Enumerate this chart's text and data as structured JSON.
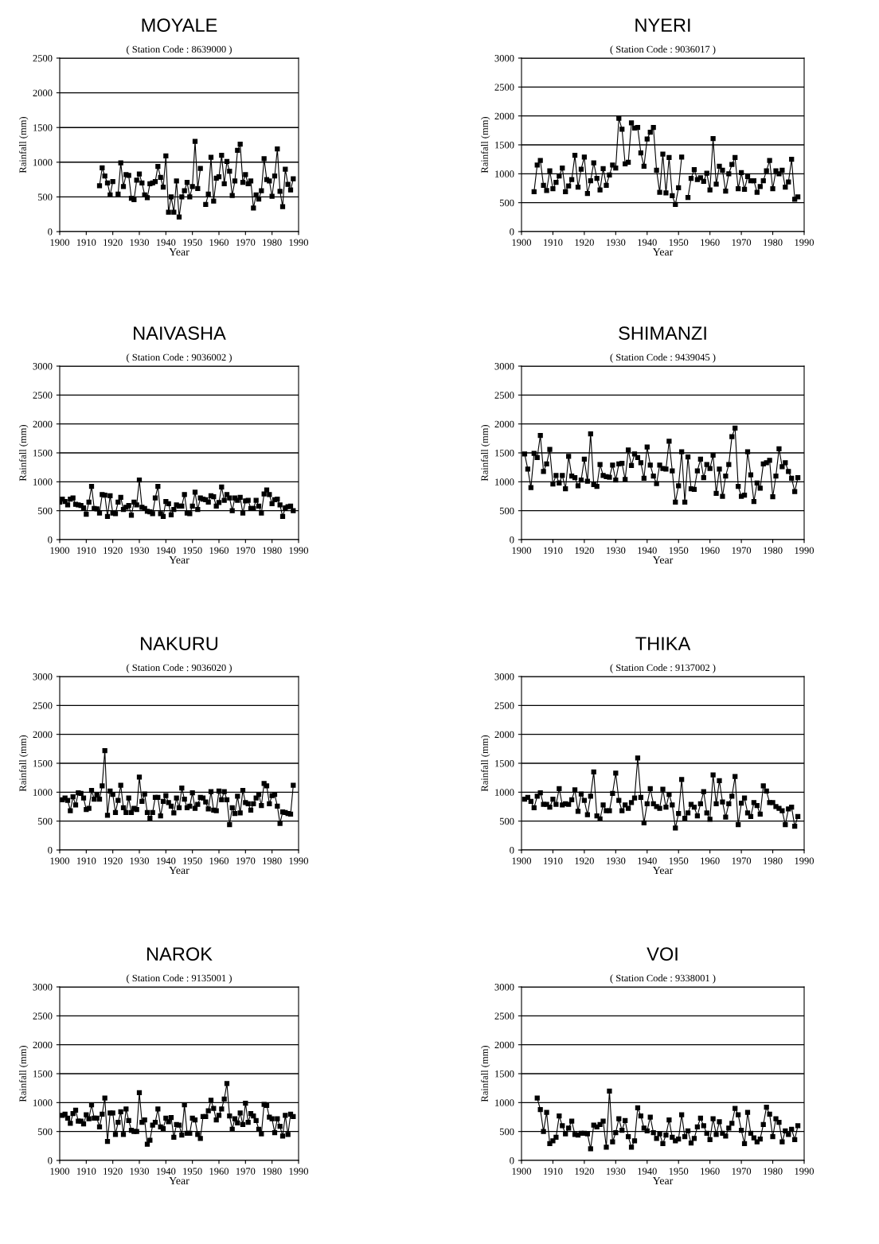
{
  "chart_data": [
    {
      "type": "line",
      "title": "MOYALE",
      "subtitle": "( Station Code : 8639000 )",
      "xlabel": "Year",
      "ylabel": "Rainfall (mm)",
      "color": "#000000",
      "marker": "square",
      "grid": "y",
      "xlim": [
        1900,
        1990
      ],
      "xticks": [
        1900,
        1910,
        1920,
        1930,
        1940,
        1950,
        1960,
        1970,
        1980,
        1990
      ],
      "ylim": [
        0,
        2500
      ],
      "yticks": [
        0,
        500,
        1000,
        1500,
        2000,
        2500
      ],
      "x": [
        1915,
        1916,
        1917,
        1918,
        1919,
        1920,
        1921,
        1922,
        1923,
        1924,
        1925,
        1926,
        1927,
        1928,
        1929,
        1930,
        1931,
        1932,
        1933,
        1934,
        1935,
        1936,
        1937,
        1938,
        1939,
        1940,
        1941,
        1942,
        1943,
        1944,
        1945,
        1946,
        1947,
        1948,
        1949,
        1950,
        1951,
        1952,
        1953,
        1954,
        1955,
        1956,
        1957,
        1958,
        1959,
        1960,
        1961,
        1962,
        1963,
        1964,
        1965,
        1966,
        1967,
        1968,
        1969,
        1970,
        1971,
        1972,
        1973,
        1974,
        1975,
        1976,
        1977,
        1978,
        1979,
        1980,
        1981,
        1982,
        1983,
        1984,
        1985,
        1986,
        1987,
        1988
      ],
      "values": [
        660,
        920,
        800,
        700,
        530,
        720,
        null,
        540,
        990,
        650,
        820,
        810,
        480,
        460,
        740,
        830,
        700,
        530,
        490,
        690,
        700,
        720,
        940,
        780,
        640,
        1090,
        280,
        500,
        280,
        730,
        210,
        500,
        590,
        710,
        500,
        650,
        1300,
        620,
        910,
        null,
        390,
        540,
        1070,
        440,
        770,
        790,
        1100,
        690,
        1010,
        870,
        520,
        730,
        1170,
        1260,
        710,
        820,
        690,
        730,
        340,
        530,
        470,
        590,
        1050,
        750,
        730,
        510,
        800,
        1190,
        580,
        360,
        900,
        680,
        600,
        760
      ]
    },
    {
      "type": "line",
      "title": "NYERI",
      "subtitle": "( Station Code : 9036017 )",
      "xlabel": "Year",
      "ylabel": "Rainfall (mm)",
      "color": "#000000",
      "marker": "square",
      "grid": "y",
      "xlim": [
        1900,
        1990
      ],
      "xticks": [
        1900,
        1910,
        1920,
        1930,
        1940,
        1950,
        1960,
        1970,
        1980,
        1990
      ],
      "ylim": [
        0,
        3000
      ],
      "yticks": [
        0,
        500,
        1000,
        1500,
        2000,
        2500,
        3000
      ],
      "x": [
        1904,
        1905,
        1906,
        1907,
        1908,
        1909,
        1910,
        1911,
        1912,
        1913,
        1914,
        1915,
        1916,
        1917,
        1918,
        1919,
        1920,
        1921,
        1922,
        1923,
        1924,
        1925,
        1926,
        1927,
        1928,
        1929,
        1930,
        1931,
        1932,
        1933,
        1934,
        1935,
        1936,
        1937,
        1938,
        1939,
        1940,
        1941,
        1942,
        1943,
        1944,
        1945,
        1946,
        1947,
        1948,
        1949,
        1950,
        1951,
        1952,
        1953,
        1954,
        1955,
        1956,
        1957,
        1958,
        1959,
        1960,
        1961,
        1962,
        1963,
        1964,
        1965,
        1966,
        1967,
        1968,
        1969,
        1970,
        1971,
        1972,
        1973,
        1974,
        1975,
        1976,
        1977,
        1978,
        1979,
        1980,
        1981,
        1982,
        1983,
        1984,
        1985,
        1986,
        1987,
        1988
      ],
      "values": [
        690,
        1150,
        1230,
        800,
        710,
        1050,
        740,
        850,
        960,
        1100,
        690,
        790,
        900,
        1320,
        770,
        1080,
        1290,
        660,
        880,
        1190,
        920,
        720,
        1090,
        800,
        980,
        1150,
        1100,
        1960,
        1770,
        1170,
        1200,
        1880,
        1790,
        1800,
        1360,
        1130,
        1600,
        1720,
        1800,
        1060,
        680,
        1340,
        670,
        1280,
        620,
        470,
        760,
        1290,
        null,
        590,
        920,
        1070,
        900,
        930,
        870,
        1010,
        720,
        1610,
        820,
        1130,
        1060,
        700,
        1000,
        1160,
        1280,
        740,
        1020,
        730,
        950,
        880,
        880,
        680,
        780,
        880,
        1050,
        1230,
        740,
        1050,
        1000,
        1060,
        770,
        860,
        1250,
        560,
        600
      ]
    },
    {
      "type": "line",
      "title": "NAIVASHA",
      "subtitle": "( Station Code : 9036002 )",
      "xlabel": "Year",
      "ylabel": "Rainfall (mm)",
      "color": "#000000",
      "marker": "square",
      "grid": "y",
      "xlim": [
        1900,
        1990
      ],
      "xticks": [
        1900,
        1910,
        1920,
        1930,
        1940,
        1950,
        1960,
        1970,
        1980,
        1990
      ],
      "ylim": [
        0,
        3000
      ],
      "yticks": [
        0,
        500,
        1000,
        1500,
        2000,
        2500,
        3000
      ],
      "x": [
        1900,
        1901,
        1902,
        1903,
        1904,
        1905,
        1906,
        1907,
        1908,
        1909,
        1910,
        1911,
        1912,
        1913,
        1914,
        1915,
        1916,
        1917,
        1918,
        1919,
        1920,
        1921,
        1922,
        1923,
        1924,
        1925,
        1926,
        1927,
        1928,
        1929,
        1930,
        1931,
        1932,
        1933,
        1934,
        1935,
        1936,
        1937,
        1938,
        1939,
        1940,
        1941,
        1942,
        1943,
        1944,
        1945,
        1946,
        1947,
        1948,
        1949,
        1950,
        1951,
        1952,
        1953,
        1954,
        1955,
        1956,
        1957,
        1958,
        1959,
        1960,
        1961,
        1962,
        1963,
        1964,
        1965,
        1966,
        1967,
        1968,
        1969,
        1970,
        1971,
        1972,
        1973,
        1974,
        1975,
        1976,
        1977,
        1978,
        1979,
        1980,
        1981,
        1982,
        1983,
        1984,
        1985,
        1986,
        1987,
        1988
      ],
      "values": [
        650,
        700,
        660,
        600,
        700,
        720,
        610,
        600,
        590,
        550,
        440,
        650,
        920,
        540,
        530,
        460,
        780,
        770,
        400,
        760,
        460,
        450,
        650,
        730,
        520,
        560,
        590,
        420,
        650,
        600,
        1030,
        560,
        540,
        490,
        480,
        450,
        720,
        920,
        450,
        400,
        660,
        620,
        430,
        520,
        600,
        580,
        580,
        780,
        460,
        450,
        580,
        820,
        520,
        720,
        700,
        690,
        650,
        760,
        740,
        580,
        640,
        910,
        680,
        780,
        720,
        500,
        720,
        680,
        730,
        460,
        670,
        680,
        540,
        540,
        680,
        580,
        460,
        790,
        860,
        780,
        620,
        690,
        700,
        600,
        400,
        550,
        570,
        580,
        500
      ]
    },
    {
      "type": "line",
      "title": "SHIMANZI",
      "subtitle": "( Station Code : 9439045 )",
      "xlabel": "Year",
      "ylabel": "Rainfall (mm)",
      "color": "#000000",
      "marker": "square",
      "grid": "y",
      "xlim": [
        1900,
        1990
      ],
      "xticks": [
        1900,
        1910,
        1920,
        1930,
        1940,
        1950,
        1960,
        1970,
        1980,
        1990
      ],
      "ylim": [
        0,
        3000
      ],
      "yticks": [
        0,
        500,
        1000,
        1500,
        2000,
        2500,
        3000
      ],
      "x": [
        1901,
        1902,
        1903,
        1904,
        1905,
        1906,
        1907,
        1908,
        1909,
        1910,
        1911,
        1912,
        1913,
        1914,
        1915,
        1916,
        1917,
        1918,
        1919,
        1920,
        1921,
        1922,
        1923,
        1924,
        1925,
        1926,
        1927,
        1928,
        1929,
        1930,
        1931,
        1932,
        1933,
        1934,
        1935,
        1936,
        1937,
        1938,
        1939,
        1940,
        1941,
        1942,
        1943,
        1944,
        1945,
        1946,
        1947,
        1948,
        1949,
        1950,
        1951,
        1952,
        1953,
        1954,
        1955,
        1956,
        1957,
        1958,
        1959,
        1960,
        1961,
        1962,
        1963,
        1964,
        1965,
        1966,
        1967,
        1968,
        1969,
        1970,
        1971,
        1972,
        1973,
        1974,
        1975,
        1976,
        1977,
        1978,
        1979,
        1980,
        1981,
        1982,
        1983,
        1984,
        1985,
        1986,
        1987,
        1988
      ],
      "values": [
        1480,
        1220,
        900,
        1490,
        1420,
        1800,
        1180,
        1310,
        1560,
        960,
        1110,
        980,
        1110,
        880,
        1440,
        1100,
        1070,
        930,
        1030,
        1390,
        1010,
        1830,
        950,
        920,
        1300,
        1110,
        1090,
        1080,
        1290,
        1030,
        1310,
        1320,
        1040,
        1550,
        1280,
        1480,
        1420,
        1330,
        1060,
        1600,
        1290,
        1100,
        970,
        1290,
        1230,
        1220,
        1700,
        1190,
        650,
        930,
        1520,
        650,
        1430,
        880,
        870,
        1190,
        1390,
        1070,
        1300,
        1230,
        1460,
        800,
        1220,
        750,
        1100,
        1300,
        1780,
        1930,
        920,
        750,
        770,
        1520,
        1120,
        660,
        980,
        890,
        1310,
        1330,
        1370,
        740,
        1100,
        1570,
        1260,
        1330,
        1180,
        1060,
        830,
        1070
      ]
    },
    {
      "type": "line",
      "title": "NAKURU",
      "subtitle": "( Station Code : 9036020 )",
      "xlabel": "Year",
      "ylabel": "Rainfall (mm)",
      "color": "#000000",
      "marker": "square",
      "grid": "y",
      "xlim": [
        1900,
        1990
      ],
      "xticks": [
        1900,
        1910,
        1920,
        1930,
        1940,
        1950,
        1960,
        1970,
        1980,
        1990
      ],
      "ylim": [
        0,
        3000
      ],
      "yticks": [
        0,
        500,
        1000,
        1500,
        2000,
        2500,
        3000
      ],
      "x": [
        1901,
        1902,
        1903,
        1904,
        1905,
        1906,
        1907,
        1908,
        1909,
        1910,
        1911,
        1912,
        1913,
        1914,
        1915,
        1916,
        1917,
        1918,
        1919,
        1920,
        1921,
        1922,
        1923,
        1924,
        1925,
        1926,
        1927,
        1928,
        1929,
        1930,
        1931,
        1932,
        1933,
        1934,
        1935,
        1936,
        1937,
        1938,
        1939,
        1940,
        1941,
        1942,
        1943,
        1944,
        1945,
        1946,
        1947,
        1948,
        1949,
        1950,
        1951,
        1952,
        1953,
        1954,
        1955,
        1956,
        1957,
        1958,
        1959,
        1960,
        1961,
        1962,
        1963,
        1964,
        1965,
        1966,
        1967,
        1968,
        1969,
        1970,
        1971,
        1972,
        1973,
        1974,
        1975,
        1976,
        1977,
        1978,
        1979,
        1980,
        1981,
        1982,
        1983,
        1984,
        1985,
        1986,
        1987,
        1988
      ],
      "values": [
        870,
        900,
        860,
        680,
        920,
        780,
        990,
        980,
        900,
        700,
        720,
        1030,
        880,
        950,
        880,
        1110,
        1720,
        600,
        1020,
        960,
        650,
        860,
        1120,
        730,
        650,
        900,
        650,
        720,
        700,
        1260,
        840,
        970,
        650,
        550,
        650,
        910,
        910,
        590,
        840,
        940,
        820,
        760,
        640,
        900,
        730,
        1070,
        880,
        730,
        760,
        990,
        720,
        790,
        910,
        900,
        830,
        710,
        1010,
        690,
        680,
        1020,
        870,
        1010,
        870,
        440,
        730,
        630,
        930,
        640,
        1030,
        820,
        800,
        690,
        800,
        900,
        960,
        770,
        1150,
        1110,
        800,
        940,
        960,
        760,
        460,
        660,
        650,
        630,
        620,
        1120
      ]
    },
    {
      "type": "line",
      "title": "THIKA",
      "subtitle": "( Station Code : 9137002 )",
      "xlabel": "Year",
      "ylabel": "Rainfall (mm)",
      "color": "#000000",
      "marker": "square",
      "grid": "y",
      "xlim": [
        1900,
        1990
      ],
      "xticks": [
        1900,
        1910,
        1920,
        1930,
        1940,
        1950,
        1960,
        1970,
        1980,
        1990
      ],
      "ylim": [
        0,
        3000
      ],
      "yticks": [
        0,
        500,
        1000,
        1500,
        2000,
        2500,
        3000
      ],
      "x": [
        1901,
        1902,
        1903,
        1904,
        1905,
        1906,
        1907,
        1908,
        1909,
        1910,
        1911,
        1912,
        1913,
        1914,
        1915,
        1916,
        1917,
        1918,
        1919,
        1920,
        1921,
        1922,
        1923,
        1924,
        1925,
        1926,
        1927,
        1928,
        1929,
        1930,
        1931,
        1932,
        1933,
        1934,
        1935,
        1936,
        1937,
        1938,
        1939,
        1940,
        1941,
        1942,
        1943,
        1944,
        1945,
        1946,
        1947,
        1948,
        1949,
        1950,
        1951,
        1952,
        1953,
        1954,
        1955,
        1956,
        1957,
        1958,
        1959,
        1960,
        1961,
        1962,
        1963,
        1964,
        1965,
        1966,
        1967,
        1968,
        1969,
        1970,
        1971,
        1972,
        1973,
        1974,
        1975,
        1976,
        1977,
        1978,
        1979,
        1980,
        1981,
        1982,
        1983,
        1984,
        1985,
        1986,
        1987,
        1988
      ],
      "values": [
        880,
        910,
        840,
        730,
        930,
        990,
        790,
        790,
        740,
        880,
        790,
        1060,
        780,
        800,
        790,
        870,
        1040,
        670,
        970,
        860,
        610,
        930,
        1350,
        590,
        540,
        780,
        680,
        680,
        980,
        1330,
        860,
        680,
        780,
        720,
        820,
        900,
        1590,
        910,
        470,
        800,
        1060,
        800,
        750,
        720,
        1050,
        740,
        960,
        780,
        380,
        630,
        1220,
        550,
        640,
        790,
        740,
        590,
        800,
        1010,
        640,
        530,
        1300,
        800,
        1200,
        830,
        570,
        800,
        930,
        1270,
        440,
        810,
        900,
        640,
        580,
        820,
        770,
        620,
        1110,
        1020,
        820,
        820,
        750,
        720,
        680,
        440,
        710,
        740,
        410,
        580
      ]
    },
    {
      "type": "line",
      "title": "NAROK",
      "subtitle": "( Station Code : 9135001 )",
      "xlabel": "Year",
      "ylabel": "Rainfall (mm)",
      "color": "#000000",
      "marker": "square",
      "grid": "y",
      "xlim": [
        1900,
        1990
      ],
      "xticks": [
        1900,
        1910,
        1920,
        1930,
        1940,
        1950,
        1960,
        1970,
        1980,
        1990
      ],
      "ylim": [
        0,
        3000
      ],
      "yticks": [
        0,
        500,
        1000,
        1500,
        2000,
        2500,
        3000
      ],
      "x": [
        1901,
        1902,
        1903,
        1904,
        1905,
        1906,
        1907,
        1908,
        1909,
        1910,
        1911,
        1912,
        1913,
        1914,
        1915,
        1916,
        1917,
        1918,
        1919,
        1920,
        1921,
        1922,
        1923,
        1924,
        1925,
        1926,
        1927,
        1928,
        1929,
        1930,
        1931,
        1932,
        1933,
        1934,
        1935,
        1936,
        1937,
        1938,
        1939,
        1940,
        1941,
        1942,
        1943,
        1944,
        1945,
        1946,
        1947,
        1948,
        1949,
        1950,
        1951,
        1952,
        1953,
        1954,
        1955,
        1956,
        1957,
        1958,
        1959,
        1960,
        1961,
        1962,
        1963,
        1964,
        1965,
        1966,
        1967,
        1968,
        1969,
        1970,
        1971,
        1972,
        1973,
        1974,
        1975,
        1976,
        1977,
        1978,
        1979,
        1980,
        1981,
        1982,
        1983,
        1984,
        1985,
        1986,
        1987,
        1988
      ],
      "values": [
        780,
        800,
        730,
        640,
        810,
        870,
        680,
        680,
        630,
        790,
        720,
        960,
        730,
        730,
        580,
        800,
        1080,
        330,
        820,
        820,
        450,
        660,
        840,
        450,
        890,
        690,
        520,
        500,
        500,
        1170,
        660,
        700,
        280,
        350,
        610,
        660,
        890,
        580,
        550,
        730,
        670,
        740,
        400,
        620,
        610,
        440,
        960,
        470,
        470,
        730,
        700,
        450,
        380,
        760,
        760,
        860,
        1040,
        900,
        700,
        780,
        890,
        1060,
        1330,
        770,
        540,
        720,
        650,
        820,
        620,
        990,
        660,
        810,
        770,
        690,
        540,
        460,
        970,
        950,
        750,
        720,
        480,
        720,
        590,
        420,
        780,
        450,
        800,
        760
      ]
    },
    {
      "type": "line",
      "title": "VOI",
      "subtitle": "( Station Code : 9338001 )",
      "xlabel": "Year",
      "ylabel": "Rainfall (mm)",
      "color": "#000000",
      "marker": "square",
      "grid": "y",
      "xlim": [
        1900,
        1990
      ],
      "xticks": [
        1900,
        1910,
        1920,
        1930,
        1940,
        1950,
        1960,
        1970,
        1980,
        1990
      ],
      "ylim": [
        0,
        3000
      ],
      "yticks": [
        0,
        500,
        1000,
        1500,
        2000,
        2500,
        3000
      ],
      "x": [
        1905,
        1906,
        1907,
        1908,
        1909,
        1910,
        1911,
        1912,
        1913,
        1914,
        1915,
        1916,
        1917,
        1918,
        1919,
        1920,
        1921,
        1922,
        1923,
        1924,
        1925,
        1926,
        1927,
        1928,
        1929,
        1930,
        1931,
        1932,
        1933,
        1934,
        1935,
        1936,
        1937,
        1938,
        1939,
        1940,
        1941,
        1942,
        1943,
        1944,
        1945,
        1946,
        1947,
        1948,
        1949,
        1950,
        1951,
        1952,
        1953,
        1954,
        1955,
        1956,
        1957,
        1958,
        1959,
        1960,
        1961,
        1962,
        1963,
        1964,
        1965,
        1966,
        1967,
        1968,
        1969,
        1970,
        1971,
        1972,
        1973,
        1974,
        1975,
        1976,
        1977,
        1978,
        1979,
        1980,
        1981,
        1982,
        1983,
        1984,
        1985,
        1986,
        1987,
        1988
      ],
      "values": [
        1080,
        880,
        500,
        830,
        290,
        340,
        400,
        770,
        600,
        460,
        560,
        680,
        450,
        440,
        470,
        470,
        460,
        200,
        610,
        580,
        620,
        680,
        230,
        1200,
        320,
        480,
        720,
        520,
        690,
        410,
        230,
        340,
        910,
        770,
        560,
        510,
        750,
        480,
        380,
        460,
        290,
        440,
        700,
        400,
        340,
        370,
        790,
        410,
        510,
        300,
        380,
        580,
        730,
        600,
        470,
        360,
        720,
        450,
        670,
        470,
        420,
        560,
        640,
        900,
        790,
        520,
        290,
        830,
        470,
        390,
        320,
        370,
        620,
        920,
        800,
        410,
        720,
        660,
        320,
        510,
        450,
        540,
        360,
        600
      ]
    }
  ]
}
